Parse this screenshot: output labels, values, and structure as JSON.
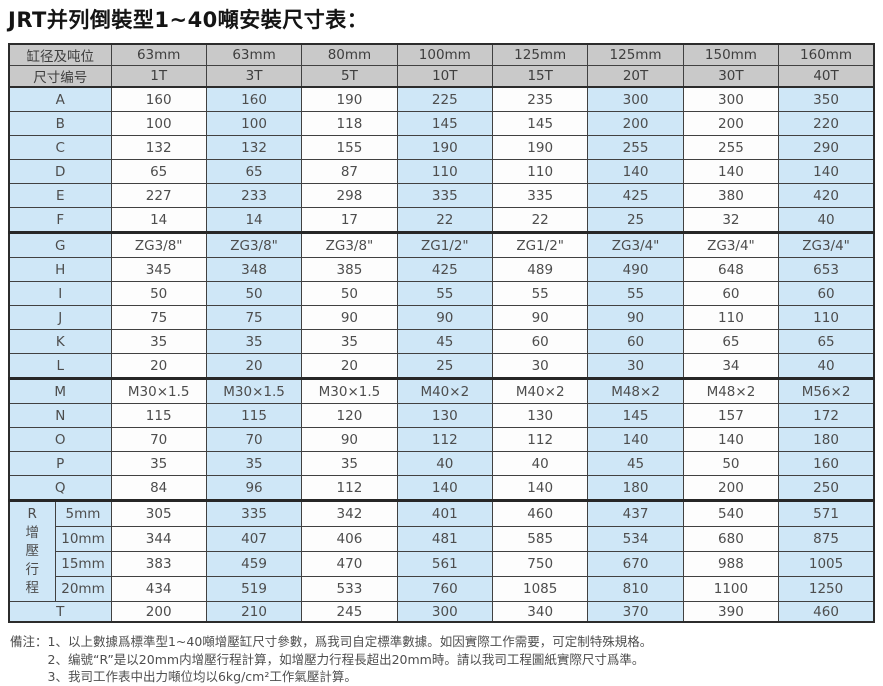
{
  "title": "JRT并列倒裝型1~40噸安裝尺寸表：",
  "table": {
    "header_row1": {
      "label": "缸径及吨位",
      "cols": [
        "63mm",
        "63mm",
        "80mm",
        "100mm",
        "125mm",
        "125mm",
        "150mm",
        "160mm"
      ]
    },
    "header_row2": {
      "label": "尺寸编号",
      "cols": [
        "1T",
        "3T",
        "5T",
        "10T",
        "15T",
        "20T",
        "30T",
        "40T"
      ]
    },
    "rows": [
      {
        "label": "A",
        "section": false,
        "values": [
          "160",
          "160",
          "190",
          "225",
          "235",
          "300",
          "300",
          "350"
        ]
      },
      {
        "label": "B",
        "section": false,
        "values": [
          "100",
          "100",
          "118",
          "145",
          "145",
          "200",
          "200",
          "220"
        ]
      },
      {
        "label": "C",
        "section": false,
        "values": [
          "132",
          "132",
          "155",
          "190",
          "190",
          "255",
          "255",
          "290"
        ]
      },
      {
        "label": "D",
        "section": false,
        "values": [
          "65",
          "65",
          "87",
          "110",
          "110",
          "140",
          "140",
          "140"
        ]
      },
      {
        "label": "E",
        "section": false,
        "values": [
          "227",
          "233",
          "298",
          "335",
          "335",
          "425",
          "380",
          "420"
        ]
      },
      {
        "label": "F",
        "section": false,
        "values": [
          "14",
          "14",
          "17",
          "22",
          "22",
          "25",
          "32",
          "40"
        ]
      },
      {
        "label": "G",
        "section": true,
        "values": [
          "ZG3/8\"",
          "ZG3/8\"",
          "ZG3/8\"",
          "ZG1/2\"",
          "ZG1/2\"",
          "ZG3/4\"",
          "ZG3/4\"",
          "ZG3/4\""
        ]
      },
      {
        "label": "H",
        "section": false,
        "values": [
          "345",
          "348",
          "385",
          "425",
          "489",
          "490",
          "648",
          "653"
        ]
      },
      {
        "label": "I",
        "section": false,
        "values": [
          "50",
          "50",
          "50",
          "55",
          "55",
          "55",
          "60",
          "60"
        ]
      },
      {
        "label": "J",
        "section": false,
        "values": [
          "75",
          "75",
          "90",
          "90",
          "90",
          "90",
          "110",
          "110"
        ]
      },
      {
        "label": "K",
        "section": false,
        "values": [
          "35",
          "35",
          "35",
          "45",
          "60",
          "60",
          "65",
          "65"
        ]
      },
      {
        "label": "L",
        "section": false,
        "values": [
          "20",
          "20",
          "20",
          "25",
          "30",
          "30",
          "34",
          "40"
        ]
      },
      {
        "label": "M",
        "section": true,
        "values": [
          "M30×1.5",
          "M30×1.5",
          "M30×1.5",
          "M40×2",
          "M40×2",
          "M48×2",
          "M48×2",
          "M56×2"
        ]
      },
      {
        "label": "N",
        "section": false,
        "values": [
          "115",
          "115",
          "120",
          "130",
          "130",
          "145",
          "157",
          "172"
        ]
      },
      {
        "label": "O",
        "section": false,
        "values": [
          "70",
          "70",
          "90",
          "112",
          "112",
          "140",
          "140",
          "180"
        ]
      },
      {
        "label": "P",
        "section": false,
        "values": [
          "35",
          "35",
          "35",
          "40",
          "40",
          "45",
          "50",
          "160"
        ]
      },
      {
        "label": "Q",
        "section": false,
        "values": [
          "84",
          "96",
          "112",
          "140",
          "140",
          "180",
          "200",
          "250"
        ]
      }
    ],
    "r_section": {
      "label_chars": [
        "R",
        "增",
        "壓",
        "行",
        "程"
      ],
      "rows": [
        {
          "label": "5mm",
          "values": [
            "305",
            "335",
            "342",
            "401",
            "460",
            "437",
            "540",
            "571"
          ]
        },
        {
          "label": "10mm",
          "values": [
            "344",
            "407",
            "406",
            "481",
            "585",
            "534",
            "680",
            "875"
          ]
        },
        {
          "label": "15mm",
          "values": [
            "383",
            "459",
            "470",
            "561",
            "750",
            "670",
            "988",
            "1005"
          ]
        },
        {
          "label": "20mm",
          "values": [
            "434",
            "519",
            "533",
            "760",
            "1085",
            "810",
            "1100",
            "1250"
          ]
        }
      ]
    },
    "t_row": {
      "label": "T",
      "values": [
        "200",
        "210",
        "245",
        "300",
        "340",
        "370",
        "390",
        "460"
      ]
    }
  },
  "notes": {
    "prefix": "備注：",
    "items": [
      "1、以上數據爲標準型1~40噸增壓缸尺寸參數，爲我司自定標準數據。如因實際工作需要，可定制特殊規格。",
      "2、编號“R”是以20mm内增壓行程計算，如增壓力行程長超出20mm時。請以我司工程圖紙實際尺寸爲準。",
      "3、我司工作表中出力噸位均以6kg/cm²工作氣壓計算。"
    ]
  },
  "colors": {
    "header_bg": "#c9c9c9",
    "blue_bg": "#cfe7f7",
    "white_bg": "#fdfdfd",
    "border": "#2c2c2c"
  }
}
